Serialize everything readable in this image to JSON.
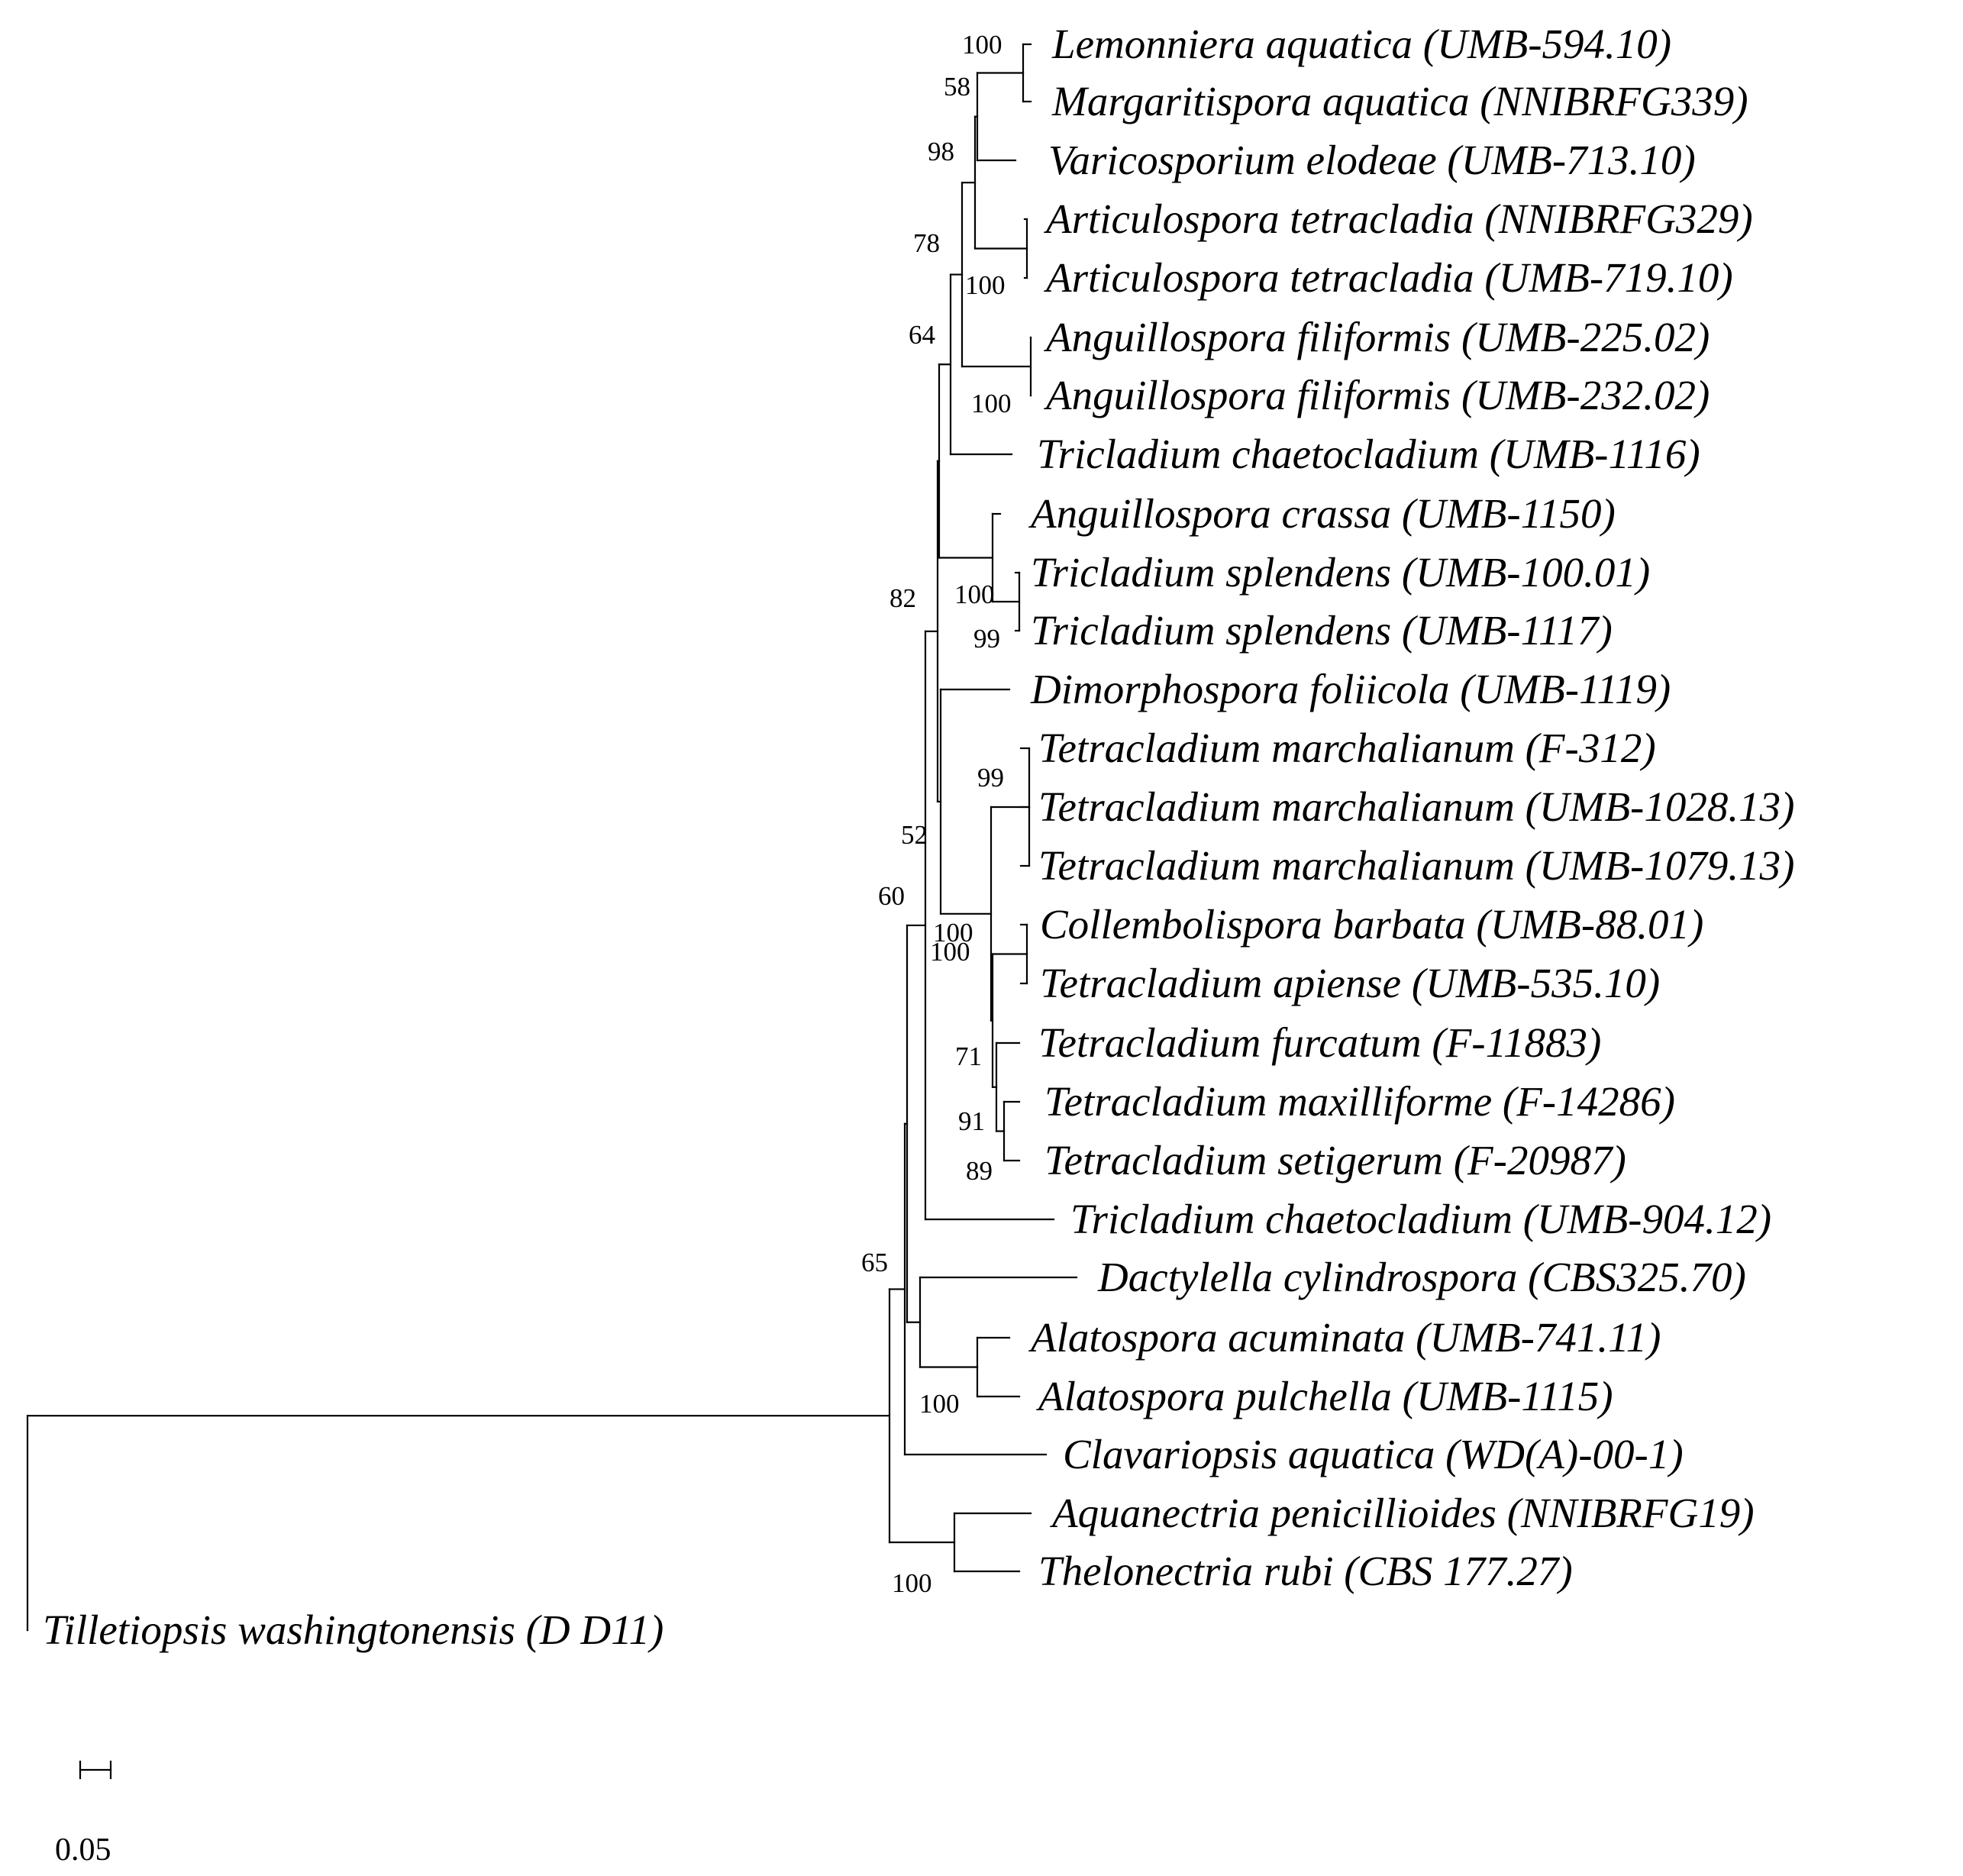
{
  "tree": {
    "taxa": [
      "Lemonniera aquatica (UMB-594.10)",
      "Margaritispora aquatica (NNIBRFG339)",
      "Varicosporium elodeae (UMB-713.10)",
      "Articulospora tetracladia (NNIBRFG329)",
      "Articulospora tetracladia (UMB-719.10)",
      "Anguillospora filiformis (UMB-225.02)",
      "Anguillospora filiformis (UMB-232.02)",
      "Tricladium chaetocladium (UMB-1116)",
      "Anguillospora crassa (UMB-1150)",
      "Tricladium splendens (UMB-100.01)",
      "Tricladium splendens (UMB-1117)",
      "Dimorphospora foliicola (UMB-1119)",
      "Tetracladium marchalianum (F-312)",
      "Tetracladium marchalianum (UMB-1028.13)",
      "Tetracladium marchalianum (UMB-1079.13)",
      "Collembolispora barbata (UMB-88.01)",
      "Tetracladium apiense (UMB-535.10)",
      "Tetracladium furcatum (F-11883)",
      "Tetracladium maxilliforme (F-14286)",
      "Tetracladium setigerum (F-20987)",
      "Tricladium chaetocladium (UMB-904.12)",
      "Dactylella cylindrospora (CBS325.70)",
      "Alatospora acuminata (UMB-741.11)",
      "Alatospora pulchella (UMB-1115)",
      "Clavariopsis aquatica (WD(A)-00-1)",
      "Aquanectria penicillioides (NNIBRFG19)",
      "Thelonectria rubi (CBS 177.27)",
      "Tilletiopsis washingtonensis (D D11)"
    ],
    "bootstrap_values": [
      "100",
      "58",
      "98",
      "78",
      "100",
      "64",
      "100",
      "100",
      "82",
      "99",
      "99",
      "52",
      "60",
      "100",
      "100",
      "71",
      "91",
      "89",
      "65",
      "100",
      "100"
    ],
    "scale_bar": {
      "label": "0.05"
    }
  }
}
